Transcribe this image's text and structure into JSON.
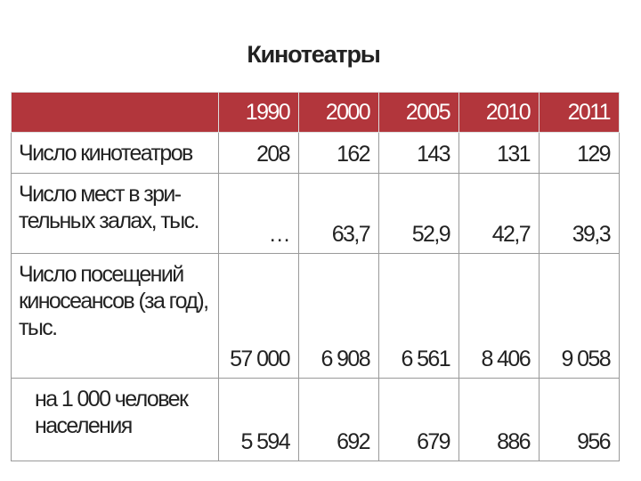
{
  "header": {
    "title": "Кинотеатры"
  },
  "table": {
    "columns": [
      "1990",
      "2000",
      "2005",
      "2010",
      "2011"
    ],
    "rows": [
      {
        "label": [
          "Число кинотеатров"
        ],
        "cells": [
          "208",
          "162",
          "143",
          "131",
          "129"
        ]
      },
      {
        "label": [
          "Число мест в зри-",
          "тельных залах, тыс."
        ],
        "cells": [
          "…",
          "63,7",
          "52,9",
          "42,7",
          "39,3"
        ]
      },
      {
        "label": [
          "Число посещений",
          "киносеансов (за год),",
          "тыс."
        ],
        "cells": [
          "57 000",
          "6 908",
          "6 561",
          "8 406",
          "9 058"
        ]
      },
      {
        "label": [
          "на 1 000 человек",
          "населения"
        ],
        "cells": [
          "5 594",
          "692",
          "679",
          "886",
          "956"
        ]
      }
    ]
  }
}
